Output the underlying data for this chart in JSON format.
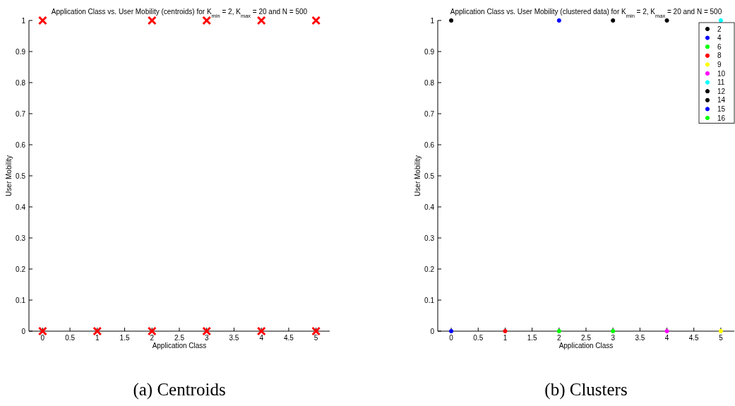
{
  "chart_data": [
    {
      "type": "scatter",
      "title": "Application Class vs. User Mobility (centroids) for K$_{min}$ = 2, K$_{max}$ = 20 and N = 500",
      "xlabel": "Application Class",
      "ylabel": "User Mobility",
      "annotations": [
        "(a) Centroids"
      ],
      "xlim": [
        -0.25,
        5.25
      ],
      "ylim": [
        0,
        1
      ],
      "xticks": [
        0,
        0.5,
        1,
        1.5,
        2,
        2.5,
        3,
        3.5,
        4,
        4.5,
        5
      ],
      "yticks": [
        0,
        0.1,
        0.2,
        0.3,
        0.4,
        0.5,
        0.6,
        0.7,
        0.8,
        0.9,
        1
      ],
      "marker": "cross",
      "legend": false,
      "series": [
        {
          "color": "#ff0000",
          "x": [
            0,
            2,
            3,
            4,
            5,
            0,
            1,
            2,
            3,
            4,
            5
          ],
          "values": [
            1,
            1,
            1,
            1,
            1,
            0,
            0,
            0,
            0,
            0,
            0
          ]
        }
      ]
    },
    {
      "type": "scatter",
      "title": "Application Class vs. User Mobility (clustered data) for K$_{min}$ = 2, K$_{max}$ = 20 and N = 500",
      "xlabel": "Application Class",
      "ylabel": "User Mobility",
      "annotations": [
        "(b) Clusters"
      ],
      "xlim": [
        -0.25,
        5.25
      ],
      "ylim": [
        0,
        1
      ],
      "xticks": [
        0,
        0.5,
        1,
        1.5,
        2,
        2.5,
        3,
        3.5,
        4,
        4.5,
        5
      ],
      "yticks": [
        0,
        0.1,
        0.2,
        0.3,
        0.4,
        0.5,
        0.6,
        0.7,
        0.8,
        0.9,
        1
      ],
      "marker": "circle",
      "legend": "top right",
      "series": [
        {
          "name": "2",
          "color": "#000000",
          "x": [
            0
          ],
          "values": [
            1
          ]
        },
        {
          "name": "4",
          "color": "#0000ff",
          "x": [
            2
          ],
          "values": [
            1
          ]
        },
        {
          "name": "6",
          "color": "#00ff00",
          "x": [
            2
          ],
          "values": [
            0
          ]
        },
        {
          "name": "8",
          "color": "#ff0000",
          "x": [
            1
          ],
          "values": [
            0
          ]
        },
        {
          "name": "9",
          "color": "#ffff00",
          "x": [
            5
          ],
          "values": [
            0
          ]
        },
        {
          "name": "10",
          "color": "#ff00ff",
          "x": [
            4
          ],
          "values": [
            0
          ]
        },
        {
          "name": "11",
          "color": "#00ffff",
          "x": [
            5
          ],
          "values": [
            1
          ]
        },
        {
          "name": "12",
          "color": "#000000",
          "x": [
            3
          ],
          "values": [
            1
          ]
        },
        {
          "name": "14",
          "color": "#000000",
          "x": [
            4
          ],
          "values": [
            1
          ]
        },
        {
          "name": "15",
          "color": "#0000ff",
          "x": [
            0
          ],
          "values": [
            0
          ]
        },
        {
          "name": "16",
          "color": "#00ff00",
          "x": [
            3
          ],
          "values": [
            0
          ]
        }
      ]
    }
  ]
}
